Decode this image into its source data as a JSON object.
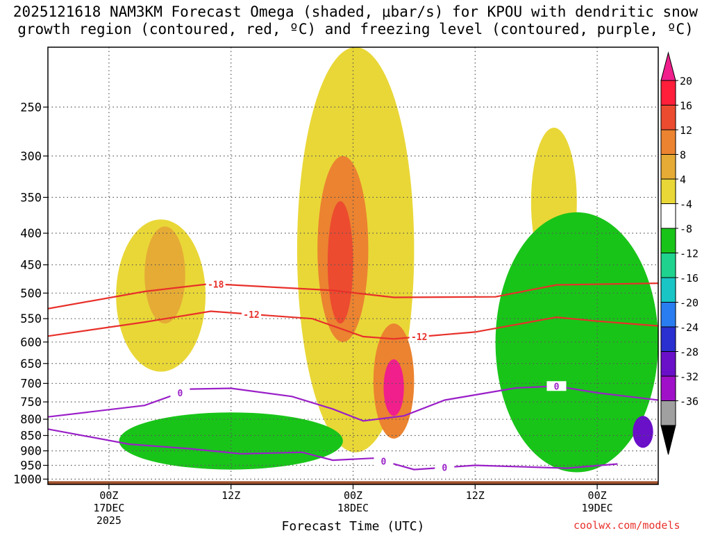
{
  "title_line1": "2025121618 NAM3KM Forecast Omega (shaded, μbar/s) for KPOU with dendritic snow",
  "title_line2": "growth region (contoured, red, ºC) and freezing level (contoured, purple, ºC)",
  "credit": "coolwx.com/models",
  "chart_data": {
    "type": "heatmap",
    "title": "2025121618 NAM3KM Forecast Omega (shaded, μbar/s) for KPOU with dendritic snow growth region (contoured, red, ºC) and freezing level (contoured, purple, ºC)",
    "xlabel": "Forecast Time (UTC)",
    "ylabel": "",
    "x_range_hours": [
      -6,
      54
    ],
    "x_ticks": [
      {
        "hour": 0,
        "labels": [
          "00Z",
          "17DEC",
          "2025"
        ]
      },
      {
        "hour": 12,
        "labels": [
          "12Z"
        ]
      },
      {
        "hour": 24,
        "labels": [
          "00Z",
          "18DEC"
        ]
      },
      {
        "hour": 36,
        "labels": [
          "12Z"
        ]
      },
      {
        "hour": 48,
        "labels": [
          "00Z",
          "19DEC"
        ]
      }
    ],
    "y_range_hpa": [
      200,
      1020
    ],
    "y_ticks_hpa": [
      250,
      300,
      350,
      400,
      450,
      500,
      550,
      600,
      650,
      700,
      750,
      800,
      850,
      900,
      950,
      1000
    ],
    "colorbar": {
      "labels": [
        "20",
        "16",
        "12",
        "8",
        "4",
        "-4",
        "-8",
        "-12",
        "-16",
        "-20",
        "-24",
        "-28",
        "-32",
        "-36"
      ],
      "levels": [
        20,
        16,
        12,
        8,
        4,
        -4,
        -8,
        -12,
        -16,
        -20,
        -24,
        -28,
        -32,
        -36
      ],
      "colors": [
        "#ff1f3a",
        "#ec4b2f",
        "#eb8330",
        "#e5ab35",
        "#e9d737",
        "#ffffff",
        "#19c419",
        "#1fd28d",
        "#19c5c5",
        "#2a7df0",
        "#2a2fd0",
        "#6a10c8",
        "#a010c8",
        "#a0a0a0"
      ],
      "top_triangle_color": "#f01f8c",
      "bottom_triangle_color": "#000000"
    },
    "omega_regions": [
      {
        "name": "upper-ascent-left",
        "level": 4,
        "t": [
          0.7,
          9.5
        ],
        "p": [
          380,
          670
        ]
      },
      {
        "name": "upper-core-left",
        "level": 8,
        "t": [
          3.5,
          7.5
        ],
        "p": [
          390,
          560
        ]
      },
      {
        "name": "main-ascent",
        "level": 4,
        "t": [
          18.5,
          30.0
        ],
        "p": [
          200,
          905
        ]
      },
      {
        "name": "main-core-upper",
        "level": 12,
        "t": [
          20.5,
          25.5
        ],
        "p": [
          300,
          600
        ]
      },
      {
        "name": "main-peak-upper",
        "level": 16,
        "t": [
          21.5,
          24.0
        ],
        "p": [
          355,
          560
        ]
      },
      {
        "name": "main-core-lower",
        "level": 12,
        "t": [
          26.0,
          30.0
        ],
        "p": [
          560,
          860
        ]
      },
      {
        "name": "main-peak-lower",
        "level": 20,
        "t": [
          27.0,
          29.0
        ],
        "p": [
          640,
          790
        ]
      },
      {
        "name": "ascent-right",
        "level": 4,
        "t": [
          41.5,
          46.0
        ],
        "p": [
          270,
          470
        ]
      },
      {
        "name": "descent-left",
        "level": -8,
        "t": [
          1.0,
          23.0
        ],
        "p": [
          780,
          965
        ]
      },
      {
        "name": "descent-right",
        "level": -8,
        "t": [
          38.0,
          54.0
        ],
        "p": [
          370,
          975
        ]
      },
      {
        "name": "descent-right-core",
        "level": -28,
        "t": [
          51.5,
          53.5
        ],
        "p": [
          790,
          890
        ]
      }
    ],
    "dgz_contours": [
      {
        "label": "-18",
        "color": "#e8302a",
        "points": [
          [
            -6,
            530
          ],
          [
            3.5,
            497
          ],
          [
            10,
            483
          ],
          [
            22,
            495
          ],
          [
            28,
            508
          ],
          [
            38,
            507
          ],
          [
            44,
            485
          ],
          [
            54,
            482
          ]
        ]
      },
      {
        "label": "-12",
        "color": "#e8302a",
        "points": [
          [
            -6,
            587
          ],
          [
            3.5,
            557
          ],
          [
            10,
            535
          ],
          [
            20,
            550
          ],
          [
            25,
            588
          ],
          [
            28,
            593
          ],
          [
            36,
            578
          ],
          [
            44,
            547
          ],
          [
            48,
            555
          ],
          [
            54,
            565
          ]
        ]
      }
    ],
    "freezing_level_contours": [
      {
        "label": "0",
        "color": "#9a1fc8",
        "points": [
          [
            -6,
            793
          ],
          [
            3.5,
            760
          ],
          [
            8,
            715
          ],
          [
            12,
            713
          ],
          [
            18,
            735
          ],
          [
            22,
            770
          ],
          [
            25,
            805
          ],
          [
            29,
            790
          ],
          [
            33,
            745
          ],
          [
            40,
            712
          ],
          [
            44,
            707
          ],
          [
            48,
            725
          ],
          [
            54,
            745
          ]
        ]
      },
      {
        "label": "0",
        "color": "#9a1fc8",
        "points": [
          [
            -6,
            830
          ],
          [
            2,
            878
          ],
          [
            8,
            893
          ],
          [
            13,
            910
          ],
          [
            19,
            905
          ],
          [
            22,
            932
          ],
          [
            26,
            925
          ],
          [
            30,
            965
          ],
          [
            36,
            950
          ],
          [
            45,
            960
          ],
          [
            50,
            945
          ]
        ]
      }
    ],
    "terrain_color": "#a0522d"
  }
}
